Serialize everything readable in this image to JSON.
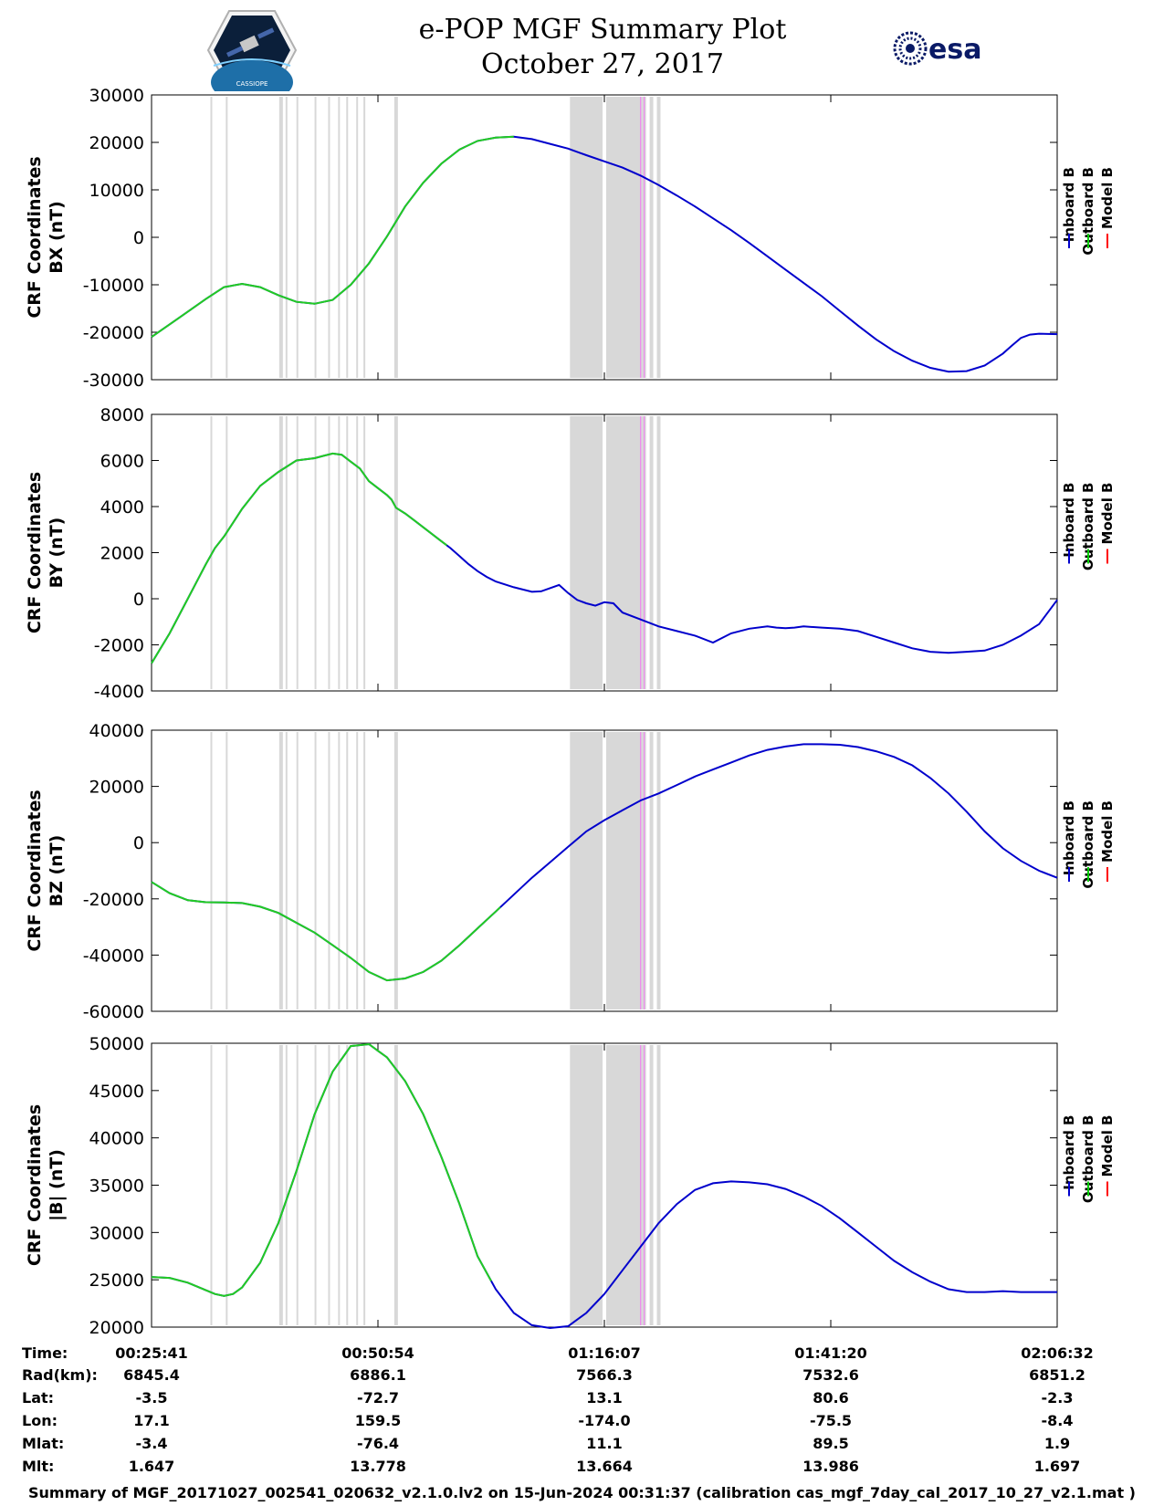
{
  "header": {
    "title_line1": "e-POP MGF Summary Plot",
    "title_line2": "October 27, 2017",
    "logo_left_icon": "cassiope-mission-patch-icon",
    "logo_left_text": "CASSIOPE",
    "logo_right_icon": "esa-logo-icon",
    "logo_right_text": "esa"
  },
  "legend": {
    "labels": [
      "Inboard B",
      "Outboard B",
      "Model B"
    ],
    "colors": [
      "#0000cc",
      "#00cc00",
      "#ff0000"
    ]
  },
  "colors": {
    "inboard": "#0000cc",
    "outboard": "#22cc22",
    "model": "#ff0000",
    "shading": "#d8d8d8",
    "marker": "#ee88ee"
  },
  "chart_data": [
    {
      "type": "line",
      "ylabel_line1": "CRF Coordinates",
      "ylabel_line2": "BX (nT)",
      "xlim": [
        0,
        100
      ],
      "ylim": [
        -30000,
        30000
      ],
      "yticks": [
        -30000,
        -20000,
        -10000,
        0,
        10000,
        20000,
        30000
      ],
      "ytick_labels": [
        "-30000",
        "-20000",
        "-10000",
        "0",
        "10000",
        "20000",
        "30000"
      ],
      "green_until": 40,
      "series": [
        {
          "name": "Inboard B",
          "x": [
            0,
            3,
            6,
            8,
            10,
            12,
            14,
            16,
            18,
            20,
            22,
            24,
            26,
            28,
            30,
            32,
            34,
            36,
            38,
            40,
            42,
            44,
            46,
            48,
            50,
            52,
            54,
            56,
            58,
            60,
            62,
            64,
            66,
            68,
            70,
            72,
            74,
            76,
            78,
            80,
            82,
            84,
            86,
            88,
            90,
            92,
            94,
            95,
            96,
            97,
            98,
            100
          ],
          "values": [
            -21000,
            -17000,
            -13000,
            -10500,
            -9800,
            -10500,
            -12200,
            -13600,
            -14000,
            -13200,
            -10000,
            -5500,
            200,
            6500,
            11500,
            15500,
            18500,
            20300,
            21000,
            21200,
            20700,
            19700,
            18700,
            17300,
            16000,
            14700,
            13000,
            11000,
            8800,
            6500,
            4000,
            1500,
            -1200,
            -4000,
            -6800,
            -9600,
            -12400,
            -15500,
            -18600,
            -21500,
            -24000,
            -26000,
            -27500,
            -28300,
            -28200,
            -27000,
            -24500,
            -22800,
            -21200,
            -20500,
            -20300,
            -20400
          ]
        }
      ]
    },
    {
      "type": "line",
      "ylabel_line1": "CRF Coordinates",
      "ylabel_line2": "BY (nT)",
      "xlim": [
        0,
        100
      ],
      "ylim": [
        -4000,
        8000
      ],
      "yticks": [
        -4000,
        -2000,
        0,
        2000,
        4000,
        6000,
        8000
      ],
      "ytick_labels": [
        "-4000",
        "-2000",
        "0",
        "2000",
        "4000",
        "6000",
        "8000"
      ],
      "green_until": 32.6,
      "series": [
        {
          "name": "Inboard B",
          "x": [
            0,
            2,
            4,
            6,
            7,
            8,
            9,
            10,
            12,
            14,
            16,
            18,
            19,
            20,
            21,
            22,
            23,
            24,
            25,
            26,
            26.5,
            27,
            28,
            29,
            30,
            31,
            32,
            33,
            34,
            35,
            36,
            37,
            38,
            40,
            42,
            43,
            45,
            46,
            47,
            48,
            49,
            50,
            51,
            52,
            54,
            56,
            58,
            60,
            62,
            64,
            66,
            68,
            69,
            70,
            71,
            72,
            74,
            76,
            78,
            80,
            82,
            84,
            86,
            88,
            90,
            92,
            94,
            96,
            98,
            100
          ],
          "values": [
            -2800,
            -1500,
            0,
            1500,
            2200,
            2700,
            3300,
            3900,
            4900,
            5500,
            6000,
            6100,
            6200,
            6300,
            6250,
            5950,
            5650,
            5100,
            4800,
            4500,
            4300,
            3950,
            3700,
            3400,
            3100,
            2800,
            2500,
            2200,
            1850,
            1500,
            1200,
            950,
            750,
            500,
            300,
            320,
            600,
            250,
            -50,
            -200,
            -300,
            -150,
            -200,
            -600,
            -900,
            -1200,
            -1400,
            -1600,
            -1900,
            -1500,
            -1300,
            -1200,
            -1250,
            -1280,
            -1250,
            -1200,
            -1250,
            -1300,
            -1400,
            -1650,
            -1900,
            -2150,
            -2300,
            -2350,
            -2300,
            -2250,
            -2000,
            -1600,
            -1100,
            -50
          ]
        }
      ]
    },
    {
      "type": "line",
      "ylabel_line1": "CRF Coordinates",
      "ylabel_line2": "BZ (nT)",
      "xlim": [
        0,
        100
      ],
      "ylim": [
        -60000,
        40000
      ],
      "yticks": [
        -60000,
        -40000,
        -20000,
        0,
        20000,
        40000
      ],
      "ytick_labels": [
        "-60000",
        "-40000",
        "-20000",
        "0",
        "20000",
        "40000"
      ],
      "green_until": 38.5,
      "series": [
        {
          "name": "Inboard B",
          "x": [
            0,
            2,
            4,
            6,
            8,
            10,
            12,
            14,
            16,
            18,
            20,
            22,
            24,
            25,
            26,
            28,
            30,
            32,
            34,
            36,
            38,
            40,
            42,
            44,
            46,
            48,
            50,
            52,
            54,
            56,
            58,
            60,
            62,
            64,
            66,
            68,
            70,
            72,
            74,
            76,
            78,
            80,
            82,
            84,
            86,
            88,
            90,
            92,
            94,
            96,
            98,
            100
          ],
          "values": [
            -14000,
            -18000,
            -20500,
            -21200,
            -21300,
            -21500,
            -22800,
            -25000,
            -28500,
            -32000,
            -36500,
            -41000,
            -46000,
            -47500,
            -49000,
            -48300,
            -46000,
            -42000,
            -36500,
            -30500,
            -24500,
            -18500,
            -12500,
            -7000,
            -1500,
            4000,
            8000,
            11500,
            15000,
            17500,
            20500,
            23500,
            26000,
            28500,
            31000,
            33000,
            34200,
            35000,
            35000,
            34800,
            34000,
            32500,
            30500,
            27500,
            23000,
            17500,
            11000,
            4000,
            -2000,
            -6500,
            -10000,
            -12500
          ]
        }
      ]
    },
    {
      "type": "line",
      "ylabel_line1": "CRF Coordinates",
      "ylabel_line2": "|B| (nT)",
      "xlim": [
        0,
        100
      ],
      "ylim": [
        20000,
        50000
      ],
      "yticks": [
        20000,
        25000,
        30000,
        35000,
        40000,
        45000,
        50000
      ],
      "ytick_labels": [
        "20000",
        "25000",
        "30000",
        "35000",
        "40000",
        "45000",
        "50000"
      ],
      "green_until": 37.5,
      "series": [
        {
          "name": "Inboard B",
          "x": [
            0,
            2,
            4,
            6,
            7,
            8,
            9,
            10,
            12,
            14,
            16,
            18,
            20,
            22,
            24,
            25,
            26,
            28,
            30,
            32,
            34,
            36,
            38,
            40,
            42,
            44,
            46,
            48,
            50,
            52,
            54,
            56,
            58,
            60,
            62,
            64,
            66,
            68,
            70,
            72,
            74,
            76,
            78,
            80,
            82,
            84,
            86,
            88,
            90,
            92,
            94,
            96,
            98,
            100
          ],
          "values": [
            25300,
            25200,
            24700,
            23900,
            23500,
            23300,
            23500,
            24200,
            26800,
            31000,
            36500,
            42500,
            47000,
            49700,
            49900,
            49200,
            48500,
            46000,
            42500,
            38000,
            33000,
            27500,
            24000,
            21500,
            20200,
            19900,
            20100,
            21500,
            23500,
            26000,
            28500,
            31000,
            33000,
            34500,
            35200,
            35400,
            35300,
            35100,
            34600,
            33800,
            32800,
            31500,
            30000,
            28500,
            27000,
            25800,
            24800,
            24000,
            23700,
            23700,
            23800,
            23700,
            23700,
            23700
          ]
        }
      ]
    }
  ],
  "xaxis": {
    "tick_positions": [
      0,
      25,
      50,
      75,
      100
    ],
    "row_labels": [
      "Time:",
      "Rad(km):",
      "Lat:",
      "Lon:",
      "Mlat:",
      "Mlt:"
    ],
    "columns": [
      [
        "00:25:41",
        "6845.4",
        "-3.5",
        "17.1",
        "-3.4",
        "1.647"
      ],
      [
        "00:50:54",
        "6886.1",
        "-72.7",
        "159.5",
        "-76.4",
        "13.778"
      ],
      [
        "01:16:07",
        "7566.3",
        "13.1",
        "-174.0",
        "11.1",
        "13.664"
      ],
      [
        "01:41:20",
        "7532.6",
        "80.6",
        "-75.5",
        "89.5",
        "13.986"
      ],
      [
        "02:06:32",
        "6851.2",
        "-2.3",
        "-8.4",
        "1.9",
        "1.697"
      ]
    ]
  },
  "shading": {
    "gray_bands": [
      [
        6.5,
        6.7
      ],
      [
        8.2,
        8.4
      ],
      [
        14.1,
        14.5
      ],
      [
        14.8,
        15.0
      ],
      [
        16.0,
        16.2
      ],
      [
        18.0,
        18.2
      ],
      [
        19.5,
        19.7
      ],
      [
        20.6,
        20.8
      ],
      [
        21.5,
        21.7
      ],
      [
        22.6,
        22.8
      ],
      [
        23.4,
        23.6
      ],
      [
        26.8,
        27.2
      ],
      [
        46.2,
        49.8
      ],
      [
        50.2,
        54.6
      ],
      [
        55.0,
        55.4
      ],
      [
        55.8,
        56.2
      ]
    ],
    "pink_lines": [
      54.0,
      54.4
    ]
  },
  "footer": {
    "text": "Summary of MGF_20171027_002541_020632_v2.1.0.lv2 on 15-Jun-2024 00:31:37 (calibration cas_mgf_7day_cal_2017_10_27_v2.1.mat )"
  }
}
